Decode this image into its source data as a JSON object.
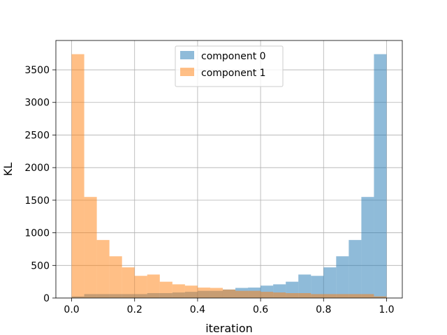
{
  "chart_data": {
    "type": "bar",
    "chart_kind": "overlaid-histogram",
    "xlabel": "iteration",
    "ylabel": "KL",
    "xlim": [
      -0.05,
      1.05
    ],
    "ylim": [
      0,
      3950
    ],
    "grid": true,
    "legend_position": "top-center",
    "x_ticks": [
      0.0,
      0.2,
      0.4,
      0.6,
      0.8,
      1.0
    ],
    "x_tick_labels": [
      "0.0",
      "0.2",
      "0.4",
      "0.6",
      "0.8",
      "1.0"
    ],
    "y_ticks": [
      0,
      500,
      1000,
      1500,
      2000,
      2500,
      3000,
      3500
    ],
    "y_tick_labels": [
      "0",
      "500",
      "1000",
      "1500",
      "2000",
      "2500",
      "3000",
      "3500"
    ],
    "bin_edges": [
      0.0,
      0.04,
      0.08,
      0.12,
      0.16,
      0.2,
      0.24,
      0.28,
      0.32,
      0.36,
      0.4,
      0.44,
      0.48,
      0.52,
      0.56,
      0.6,
      0.64,
      0.68,
      0.72,
      0.76,
      0.8,
      0.84,
      0.88,
      0.92,
      0.96,
      1.0
    ],
    "series": [
      {
        "name": "component 0",
        "color": "#1f77b4",
        "alpha": 0.5,
        "values": [
          25,
          60,
          60,
          60,
          60,
          60,
          75,
          75,
          85,
          95,
          110,
          110,
          130,
          155,
          160,
          190,
          210,
          250,
          360,
          340,
          470,
          640,
          890,
          1550,
          3740
        ]
      },
      {
        "name": "component 1",
        "color": "#ff7f0e",
        "alpha": 0.5,
        "values": [
          3740,
          1550,
          890,
          640,
          470,
          340,
          360,
          250,
          210,
          190,
          160,
          155,
          130,
          110,
          110,
          95,
          85,
          75,
          75,
          60,
          60,
          60,
          60,
          60,
          25
        ]
      }
    ]
  }
}
